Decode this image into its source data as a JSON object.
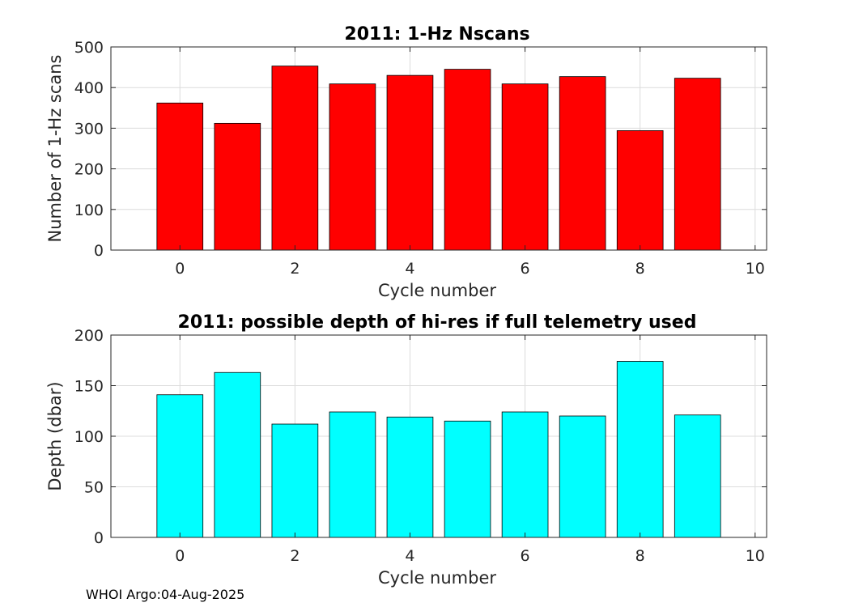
{
  "chart_data": [
    {
      "type": "bar",
      "title": "2011: 1-Hz Nscans",
      "xlabel": "Cycle number",
      "ylabel": "Number of 1-Hz scans",
      "x": [
        0,
        1,
        2,
        3,
        4,
        5,
        6,
        7,
        8,
        9
      ],
      "values": [
        362,
        312,
        453,
        409,
        430,
        445,
        409,
        427,
        294,
        423
      ],
      "xlim": [
        -1.2,
        10.2
      ],
      "ylim": [
        0,
        500
      ],
      "xticks": [
        "0",
        "2",
        "4",
        "6",
        "8",
        "10"
      ],
      "yticks": [
        "0",
        "100",
        "200",
        "300",
        "400",
        "500"
      ],
      "bar_color": "#ff0000",
      "grid": true
    },
    {
      "type": "bar",
      "title": "2011: possible depth of hi-res if full telemetry used",
      "xlabel": "Cycle number",
      "ylabel": "Depth (dbar)",
      "x": [
        0,
        1,
        2,
        3,
        4,
        5,
        6,
        7,
        8,
        9
      ],
      "values": [
        141,
        163,
        112,
        124,
        119,
        115,
        124,
        120,
        174,
        121
      ],
      "xlim": [
        -1.2,
        10.2
      ],
      "ylim": [
        0,
        200
      ],
      "xticks": [
        "0",
        "2",
        "4",
        "6",
        "8",
        "10"
      ],
      "yticks": [
        "0",
        "50",
        "100",
        "150",
        "200"
      ],
      "bar_color": "#00ffff",
      "grid": true
    }
  ],
  "footer": "WHOI Argo:04-Aug-2025"
}
